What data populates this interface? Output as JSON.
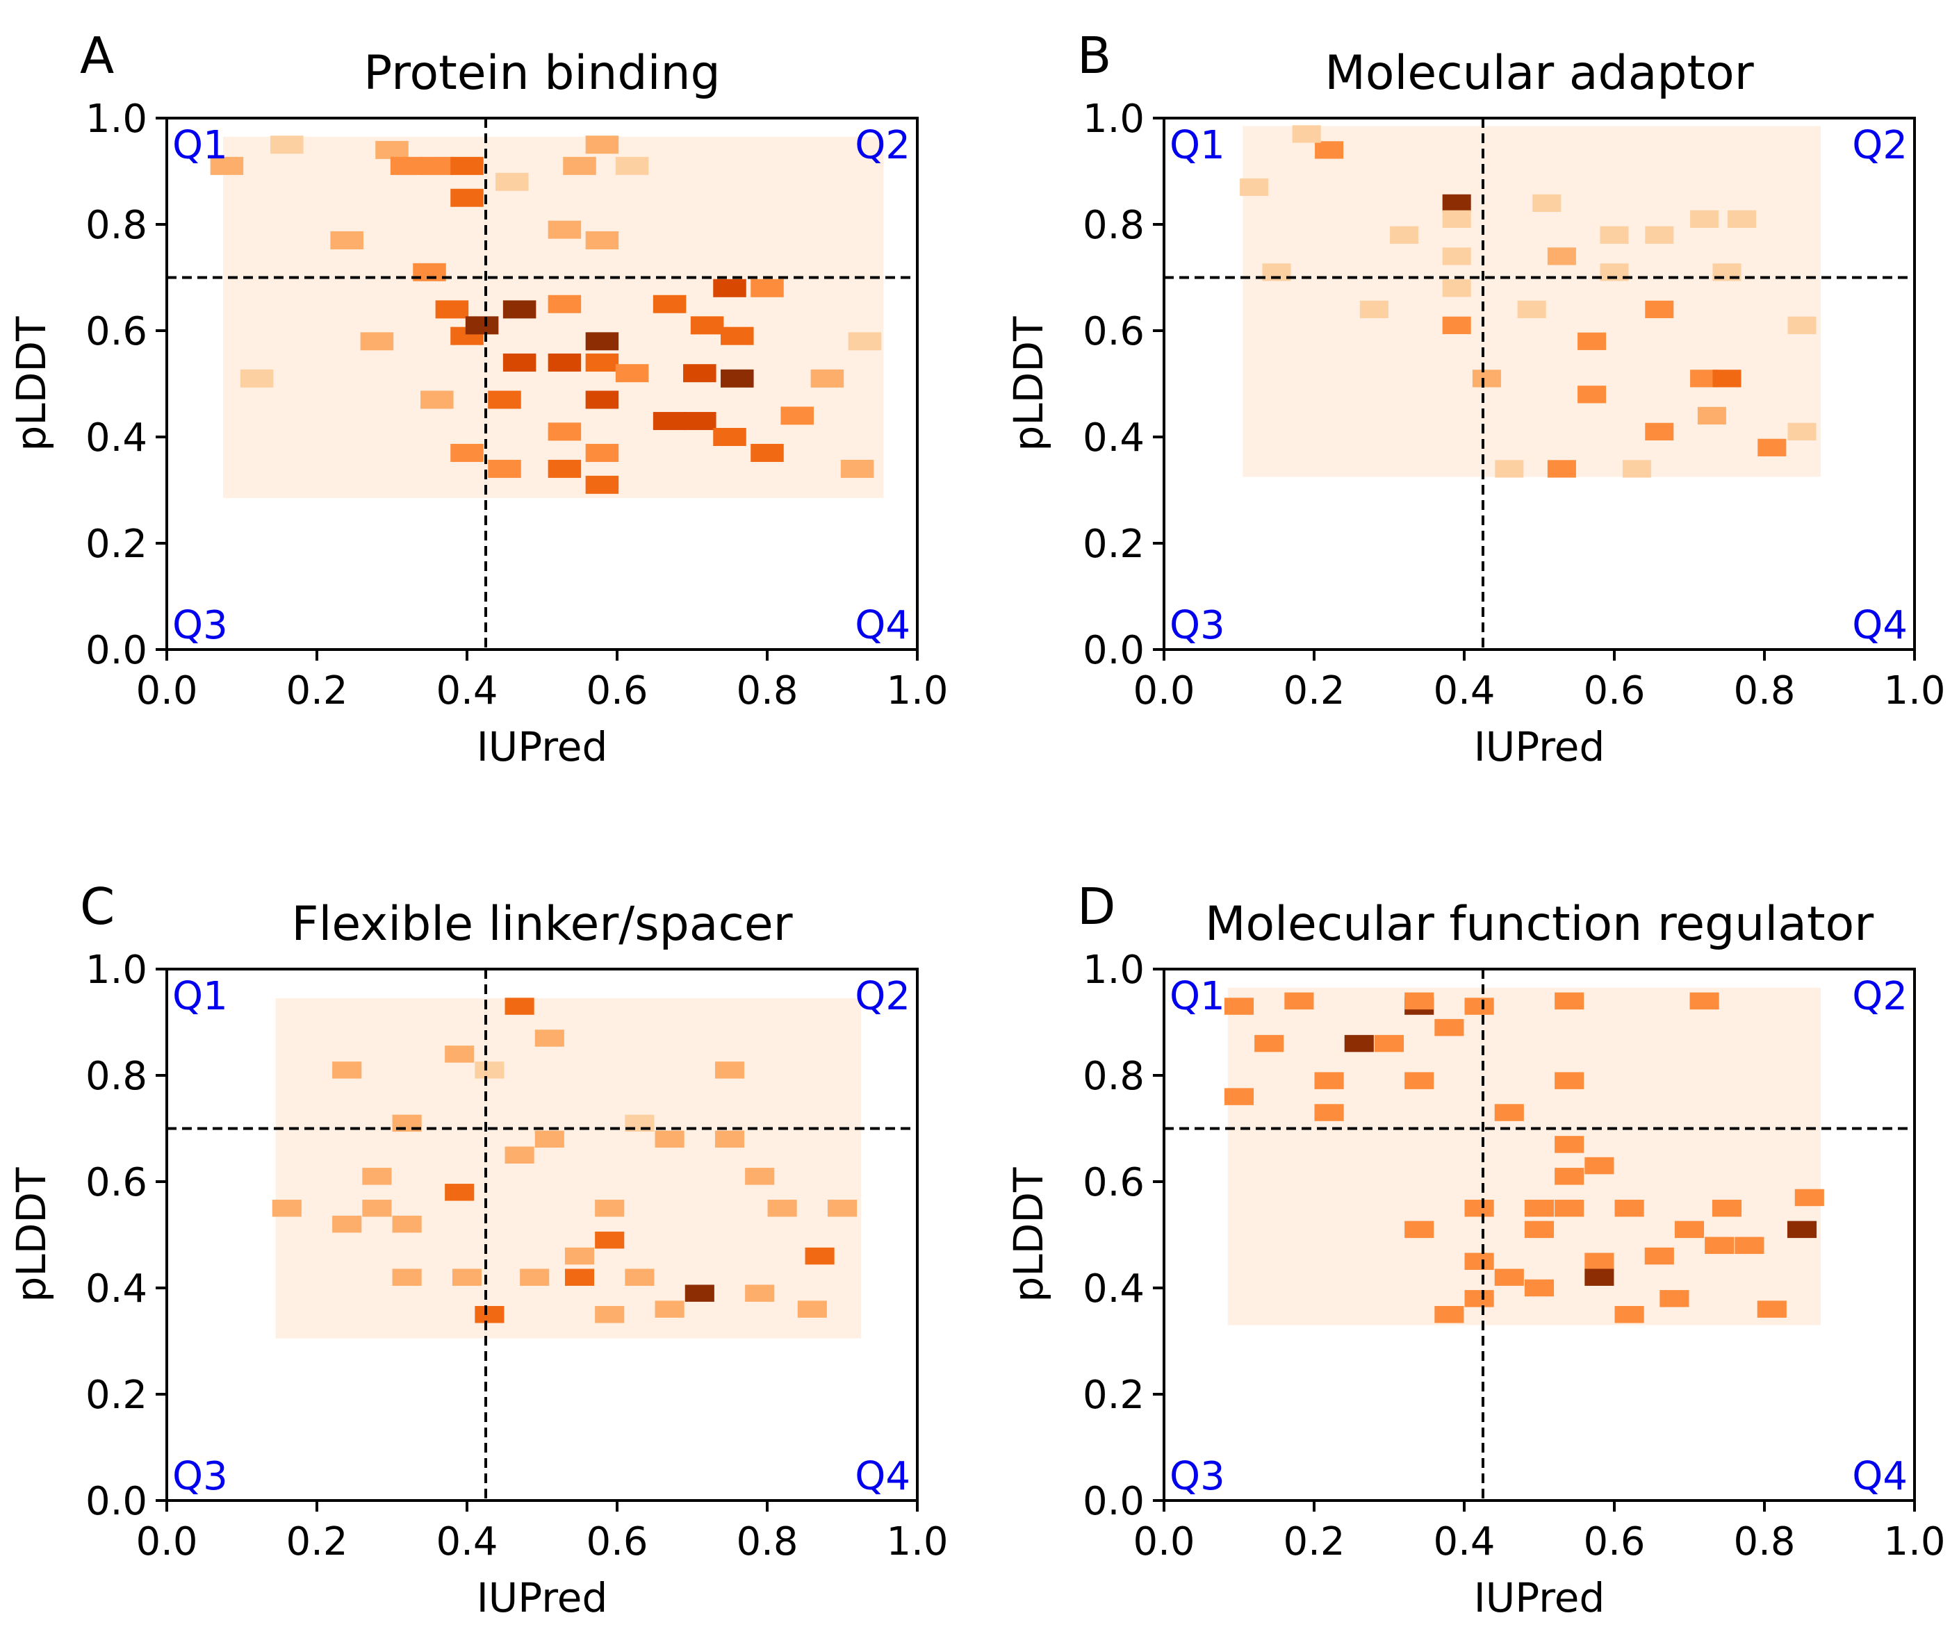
{
  "palette": {
    "bin_colors": [
      "#fee6ce",
      "#fdd0a2",
      "#fdae6b",
      "#fd8d3c",
      "#f16913",
      "#d94801",
      "#8c2d04"
    ],
    "background_bin": "#fff0e3",
    "threshold_line": "#000000",
    "quadrant_label_color": "#0000ee"
  },
  "chart_data": [
    {
      "panel": "A",
      "title": "Protein binding",
      "type": "heatmap",
      "xlabel": "IUPred",
      "ylabel": "pLDDT",
      "xlim": [
        0.0,
        1.0
      ],
      "ylim": [
        0.0,
        1.0
      ],
      "xticks": [
        "0.0",
        "0.2",
        "0.4",
        "0.6",
        "0.8",
        "1.0"
      ],
      "yticks": [
        "0.0",
        "0.2",
        "0.4",
        "0.6",
        "0.8",
        "1.0"
      ],
      "thresholds": {
        "iupred": 0.425,
        "plddt": 0.7
      },
      "quadrants": [
        "Q1",
        "Q2",
        "Q3",
        "Q4"
      ],
      "grid": false,
      "extent": {
        "x": [
          0.075,
          0.955
        ],
        "y": [
          0.285,
          0.965
        ]
      },
      "bin_size": {
        "x": 0.044,
        "y": 0.034
      },
      "cells": [
        {
          "x": 0.08,
          "y": 0.91,
          "level": 2
        },
        {
          "x": 0.16,
          "y": 0.95,
          "level": 1
        },
        {
          "x": 0.3,
          "y": 0.94,
          "level": 2
        },
        {
          "x": 0.32,
          "y": 0.91,
          "level": 3
        },
        {
          "x": 0.36,
          "y": 0.91,
          "level": 3
        },
        {
          "x": 0.4,
          "y": 0.91,
          "level": 4
        },
        {
          "x": 0.4,
          "y": 0.85,
          "level": 4
        },
        {
          "x": 0.46,
          "y": 0.88,
          "level": 1
        },
        {
          "x": 0.55,
          "y": 0.91,
          "level": 2
        },
        {
          "x": 0.58,
          "y": 0.95,
          "level": 2
        },
        {
          "x": 0.62,
          "y": 0.91,
          "level": 1
        },
        {
          "x": 0.24,
          "y": 0.77,
          "level": 2
        },
        {
          "x": 0.35,
          "y": 0.71,
          "level": 3
        },
        {
          "x": 0.53,
          "y": 0.79,
          "level": 2
        },
        {
          "x": 0.58,
          "y": 0.77,
          "level": 2
        },
        {
          "x": 0.38,
          "y": 0.64,
          "level": 4
        },
        {
          "x": 0.4,
          "y": 0.59,
          "level": 4
        },
        {
          "x": 0.47,
          "y": 0.64,
          "level": 6
        },
        {
          "x": 0.42,
          "y": 0.61,
          "level": 6
        },
        {
          "x": 0.53,
          "y": 0.65,
          "level": 3
        },
        {
          "x": 0.58,
          "y": 0.58,
          "level": 6
        },
        {
          "x": 0.67,
          "y": 0.65,
          "level": 4
        },
        {
          "x": 0.75,
          "y": 0.68,
          "level": 5
        },
        {
          "x": 0.8,
          "y": 0.68,
          "level": 3
        },
        {
          "x": 0.72,
          "y": 0.61,
          "level": 4
        },
        {
          "x": 0.76,
          "y": 0.59,
          "level": 4
        },
        {
          "x": 0.47,
          "y": 0.54,
          "level": 5
        },
        {
          "x": 0.53,
          "y": 0.54,
          "level": 5
        },
        {
          "x": 0.58,
          "y": 0.54,
          "level": 4
        },
        {
          "x": 0.62,
          "y": 0.52,
          "level": 3
        },
        {
          "x": 0.71,
          "y": 0.52,
          "level": 5
        },
        {
          "x": 0.76,
          "y": 0.51,
          "level": 6
        },
        {
          "x": 0.45,
          "y": 0.47,
          "level": 4
        },
        {
          "x": 0.58,
          "y": 0.47,
          "level": 5
        },
        {
          "x": 0.67,
          "y": 0.43,
          "level": 5
        },
        {
          "x": 0.71,
          "y": 0.43,
          "level": 5
        },
        {
          "x": 0.75,
          "y": 0.4,
          "level": 4
        },
        {
          "x": 0.8,
          "y": 0.37,
          "level": 4
        },
        {
          "x": 0.84,
          "y": 0.44,
          "level": 3
        },
        {
          "x": 0.53,
          "y": 0.41,
          "level": 3
        },
        {
          "x": 0.58,
          "y": 0.37,
          "level": 3
        },
        {
          "x": 0.53,
          "y": 0.34,
          "level": 4
        },
        {
          "x": 0.58,
          "y": 0.31,
          "level": 4
        },
        {
          "x": 0.45,
          "y": 0.34,
          "level": 3
        },
        {
          "x": 0.4,
          "y": 0.37,
          "level": 3
        },
        {
          "x": 0.88,
          "y": 0.51,
          "level": 2
        },
        {
          "x": 0.93,
          "y": 0.58,
          "level": 1
        },
        {
          "x": 0.92,
          "y": 0.34,
          "level": 2
        },
        {
          "x": 0.12,
          "y": 0.51,
          "level": 1
        },
        {
          "x": 0.28,
          "y": 0.58,
          "level": 2
        },
        {
          "x": 0.36,
          "y": 0.47,
          "level": 2
        }
      ]
    },
    {
      "panel": "B",
      "title": "Molecular adaptor",
      "type": "heatmap",
      "xlabel": "IUPred",
      "ylabel": "pLDDT",
      "xlim": [
        0.0,
        1.0
      ],
      "ylim": [
        0.0,
        1.0
      ],
      "xticks": [
        "0.0",
        "0.2",
        "0.4",
        "0.6",
        "0.8",
        "1.0"
      ],
      "yticks": [
        "0.0",
        "0.2",
        "0.4",
        "0.6",
        "0.8",
        "1.0"
      ],
      "thresholds": {
        "iupred": 0.425,
        "plddt": 0.7
      },
      "quadrants": [
        "Q1",
        "Q2",
        "Q3",
        "Q4"
      ],
      "grid": false,
      "extent": {
        "x": [
          0.105,
          0.875
        ],
        "y": [
          0.325,
          0.985
        ]
      },
      "bin_size": {
        "x": 0.038,
        "y": 0.033
      },
      "cells": [
        {
          "x": 0.22,
          "y": 0.94,
          "level": 3
        },
        {
          "x": 0.19,
          "y": 0.97,
          "level": 1
        },
        {
          "x": 0.39,
          "y": 0.84,
          "level": 6
        },
        {
          "x": 0.12,
          "y": 0.87,
          "level": 1
        },
        {
          "x": 0.39,
          "y": 0.81,
          "level": 1
        },
        {
          "x": 0.32,
          "y": 0.78,
          "level": 1
        },
        {
          "x": 0.51,
          "y": 0.84,
          "level": 1
        },
        {
          "x": 0.53,
          "y": 0.74,
          "level": 2
        },
        {
          "x": 0.6,
          "y": 0.78,
          "level": 1
        },
        {
          "x": 0.66,
          "y": 0.78,
          "level": 1
        },
        {
          "x": 0.72,
          "y": 0.81,
          "level": 1
        },
        {
          "x": 0.77,
          "y": 0.81,
          "level": 1
        },
        {
          "x": 0.15,
          "y": 0.71,
          "level": 1
        },
        {
          "x": 0.39,
          "y": 0.74,
          "level": 1
        },
        {
          "x": 0.39,
          "y": 0.68,
          "level": 1
        },
        {
          "x": 0.28,
          "y": 0.64,
          "level": 1
        },
        {
          "x": 0.39,
          "y": 0.61,
          "level": 3
        },
        {
          "x": 0.49,
          "y": 0.64,
          "level": 1
        },
        {
          "x": 0.66,
          "y": 0.64,
          "level": 3
        },
        {
          "x": 0.6,
          "y": 0.71,
          "level": 1
        },
        {
          "x": 0.75,
          "y": 0.71,
          "level": 1
        },
        {
          "x": 0.57,
          "y": 0.58,
          "level": 3
        },
        {
          "x": 0.85,
          "y": 0.61,
          "level": 1
        },
        {
          "x": 0.72,
          "y": 0.51,
          "level": 3
        },
        {
          "x": 0.75,
          "y": 0.51,
          "level": 4
        },
        {
          "x": 0.43,
          "y": 0.51,
          "level": 2
        },
        {
          "x": 0.57,
          "y": 0.48,
          "level": 3
        },
        {
          "x": 0.73,
          "y": 0.44,
          "level": 2
        },
        {
          "x": 0.66,
          "y": 0.41,
          "level": 3
        },
        {
          "x": 0.81,
          "y": 0.38,
          "level": 3
        },
        {
          "x": 0.53,
          "y": 0.34,
          "level": 3
        },
        {
          "x": 0.46,
          "y": 0.34,
          "level": 1
        },
        {
          "x": 0.63,
          "y": 0.34,
          "level": 1
        },
        {
          "x": 0.85,
          "y": 0.41,
          "level": 1
        }
      ]
    },
    {
      "panel": "C",
      "title": "Flexible linker/spacer",
      "type": "heatmap",
      "xlabel": "IUPred",
      "ylabel": "pLDDT",
      "xlim": [
        0.0,
        1.0
      ],
      "ylim": [
        0.0,
        1.0
      ],
      "xticks": [
        "0.0",
        "0.2",
        "0.4",
        "0.6",
        "0.8",
        "1.0"
      ],
      "yticks": [
        "0.0",
        "0.2",
        "0.4",
        "0.6",
        "0.8",
        "1.0"
      ],
      "thresholds": {
        "iupred": 0.425,
        "plddt": 0.7
      },
      "quadrants": [
        "Q1",
        "Q2",
        "Q3",
        "Q4"
      ],
      "grid": false,
      "extent": {
        "x": [
          0.145,
          0.925
        ],
        "y": [
          0.305,
          0.945
        ]
      },
      "bin_size": {
        "x": 0.039,
        "y": 0.032
      },
      "cells": [
        {
          "x": 0.47,
          "y": 0.93,
          "level": 4
        },
        {
          "x": 0.51,
          "y": 0.87,
          "level": 2
        },
        {
          "x": 0.39,
          "y": 0.84,
          "level": 2
        },
        {
          "x": 0.24,
          "y": 0.81,
          "level": 2
        },
        {
          "x": 0.43,
          "y": 0.81,
          "level": 1
        },
        {
          "x": 0.75,
          "y": 0.81,
          "level": 2
        },
        {
          "x": 0.32,
          "y": 0.71,
          "level": 2
        },
        {
          "x": 0.63,
          "y": 0.71,
          "level": 1
        },
        {
          "x": 0.67,
          "y": 0.68,
          "level": 2
        },
        {
          "x": 0.75,
          "y": 0.68,
          "level": 2
        },
        {
          "x": 0.51,
          "y": 0.68,
          "level": 2
        },
        {
          "x": 0.47,
          "y": 0.65,
          "level": 2
        },
        {
          "x": 0.28,
          "y": 0.61,
          "level": 2
        },
        {
          "x": 0.39,
          "y": 0.58,
          "level": 4
        },
        {
          "x": 0.79,
          "y": 0.61,
          "level": 2
        },
        {
          "x": 0.16,
          "y": 0.55,
          "level": 2
        },
        {
          "x": 0.24,
          "y": 0.52,
          "level": 2
        },
        {
          "x": 0.28,
          "y": 0.55,
          "level": 2
        },
        {
          "x": 0.32,
          "y": 0.52,
          "level": 2
        },
        {
          "x": 0.59,
          "y": 0.55,
          "level": 2
        },
        {
          "x": 0.82,
          "y": 0.55,
          "level": 2
        },
        {
          "x": 0.9,
          "y": 0.55,
          "level": 2
        },
        {
          "x": 0.59,
          "y": 0.49,
          "level": 4
        },
        {
          "x": 0.55,
          "y": 0.42,
          "level": 4
        },
        {
          "x": 0.87,
          "y": 0.46,
          "level": 4
        },
        {
          "x": 0.71,
          "y": 0.39,
          "level": 6
        },
        {
          "x": 0.43,
          "y": 0.35,
          "level": 4
        },
        {
          "x": 0.55,
          "y": 0.46,
          "level": 2
        },
        {
          "x": 0.49,
          "y": 0.42,
          "level": 2
        },
        {
          "x": 0.63,
          "y": 0.42,
          "level": 2
        },
        {
          "x": 0.4,
          "y": 0.42,
          "level": 2
        },
        {
          "x": 0.32,
          "y": 0.42,
          "level": 2
        },
        {
          "x": 0.59,
          "y": 0.35,
          "level": 2
        },
        {
          "x": 0.67,
          "y": 0.36,
          "level": 2
        },
        {
          "x": 0.79,
          "y": 0.39,
          "level": 2
        },
        {
          "x": 0.86,
          "y": 0.36,
          "level": 2
        }
      ]
    },
    {
      "panel": "D",
      "title": "Molecular function regulator",
      "type": "heatmap",
      "xlabel": "IUPred",
      "ylabel": "pLDDT",
      "xlim": [
        0.0,
        1.0
      ],
      "ylim": [
        0.0,
        1.0
      ],
      "xticks": [
        "0.0",
        "0.2",
        "0.4",
        "0.6",
        "0.8",
        "1.0"
      ],
      "yticks": [
        "0.0",
        "0.2",
        "0.4",
        "0.6",
        "0.8",
        "1.0"
      ],
      "thresholds": {
        "iupred": 0.425,
        "plddt": 0.7
      },
      "quadrants": [
        "Q1",
        "Q2",
        "Q3",
        "Q4"
      ],
      "grid": false,
      "extent": {
        "x": [
          0.085,
          0.875
        ],
        "y": [
          0.33,
          0.965
        ]
      },
      "bin_size": {
        "x": 0.039,
        "y": 0.032
      },
      "cells": [
        {
          "x": 0.1,
          "y": 0.93,
          "level": 3
        },
        {
          "x": 0.18,
          "y": 0.94,
          "level": 3
        },
        {
          "x": 0.34,
          "y": 0.93,
          "level": 6
        },
        {
          "x": 0.34,
          "y": 0.94,
          "level": 3
        },
        {
          "x": 0.42,
          "y": 0.93,
          "level": 3
        },
        {
          "x": 0.54,
          "y": 0.94,
          "level": 3
        },
        {
          "x": 0.72,
          "y": 0.94,
          "level": 3
        },
        {
          "x": 0.14,
          "y": 0.86,
          "level": 3
        },
        {
          "x": 0.26,
          "y": 0.86,
          "level": 6
        },
        {
          "x": 0.3,
          "y": 0.86,
          "level": 3
        },
        {
          "x": 0.38,
          "y": 0.89,
          "level": 3
        },
        {
          "x": 0.22,
          "y": 0.79,
          "level": 3
        },
        {
          "x": 0.34,
          "y": 0.79,
          "level": 3
        },
        {
          "x": 0.1,
          "y": 0.76,
          "level": 3
        },
        {
          "x": 0.22,
          "y": 0.73,
          "level": 3
        },
        {
          "x": 0.46,
          "y": 0.73,
          "level": 3
        },
        {
          "x": 0.54,
          "y": 0.79,
          "level": 3
        },
        {
          "x": 0.54,
          "y": 0.67,
          "level": 3
        },
        {
          "x": 0.58,
          "y": 0.63,
          "level": 3
        },
        {
          "x": 0.54,
          "y": 0.61,
          "level": 3
        },
        {
          "x": 0.42,
          "y": 0.55,
          "level": 3
        },
        {
          "x": 0.5,
          "y": 0.55,
          "level": 3
        },
        {
          "x": 0.54,
          "y": 0.55,
          "level": 3
        },
        {
          "x": 0.62,
          "y": 0.55,
          "level": 3
        },
        {
          "x": 0.75,
          "y": 0.55,
          "level": 3
        },
        {
          "x": 0.86,
          "y": 0.57,
          "level": 3
        },
        {
          "x": 0.34,
          "y": 0.51,
          "level": 3
        },
        {
          "x": 0.5,
          "y": 0.51,
          "level": 3
        },
        {
          "x": 0.7,
          "y": 0.51,
          "level": 3
        },
        {
          "x": 0.85,
          "y": 0.51,
          "level": 6
        },
        {
          "x": 0.66,
          "y": 0.46,
          "level": 3
        },
        {
          "x": 0.74,
          "y": 0.48,
          "level": 3
        },
        {
          "x": 0.78,
          "y": 0.48,
          "level": 3
        },
        {
          "x": 0.42,
          "y": 0.45,
          "level": 3
        },
        {
          "x": 0.58,
          "y": 0.45,
          "level": 3
        },
        {
          "x": 0.46,
          "y": 0.42,
          "level": 3
        },
        {
          "x": 0.58,
          "y": 0.42,
          "level": 6
        },
        {
          "x": 0.5,
          "y": 0.4,
          "level": 3
        },
        {
          "x": 0.42,
          "y": 0.38,
          "level": 3
        },
        {
          "x": 0.68,
          "y": 0.38,
          "level": 3
        },
        {
          "x": 0.38,
          "y": 0.35,
          "level": 3
        },
        {
          "x": 0.62,
          "y": 0.35,
          "level": 3
        },
        {
          "x": 0.81,
          "y": 0.36,
          "level": 3
        }
      ]
    }
  ]
}
